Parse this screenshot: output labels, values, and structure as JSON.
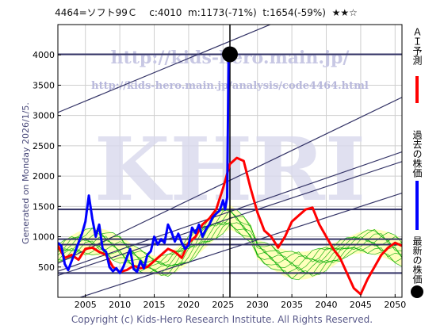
{
  "header": {
    "code_name": "4464=ソフト99Ｃ",
    "current": "c:4010",
    "min": "m:1173(-71%)",
    "target": "t:1654(-59%)",
    "rating": "★★☆"
  },
  "side_text": "Generated on Monday 2026/1/5.",
  "footer": "Copyright (c) Kids-Hero Research Institute. All Rights Reserved.",
  "watermark": {
    "url": "http://kids-hero.main.jp/",
    "path": "http://kids-hero.main.jp/analysis/code4464.html",
    "big": "KHRI"
  },
  "legend": [
    {
      "label": "ＡＩ予測",
      "color": "#ff0000"
    },
    {
      "label": "過去の株価",
      "color": "#0000ff"
    },
    {
      "label": "最新の株価",
      "color": "#000000"
    }
  ],
  "colors": {
    "forecast": "#ff0000",
    "history": "#0000ff",
    "band": "#00aa00",
    "band_fill": "#ffffb0",
    "line": "#333366"
  },
  "chart_data": {
    "type": "line",
    "xlim": [
      2001,
      2051
    ],
    "ylim": [
      0,
      4500
    ],
    "x_ticks": [
      2005,
      2010,
      2015,
      2020,
      2025,
      2030,
      2035,
      2040,
      2045,
      2050
    ],
    "y_ticks": [
      500,
      1000,
      1500,
      2000,
      2500,
      3000,
      3500,
      4000
    ],
    "grid": true,
    "latest": {
      "x": 2026.0,
      "y": 4010
    },
    "horizontal_lines": [
      4010,
      1450,
      960,
      870,
      400
    ],
    "trend_lines": [
      {
        "x": [
          2001,
          2051
        ],
        "y": [
          3050,
          5400
        ]
      },
      {
        "x": [
          2001,
          2051
        ],
        "y": [
          560,
          3300
        ]
      },
      {
        "x": [
          2001,
          2051
        ],
        "y": [
          430,
          2400
        ]
      },
      {
        "x": [
          2001,
          2051
        ],
        "y": [
          360,
          2240
        ]
      },
      {
        "x": [
          2001,
          2051
        ],
        "y": [
          -120,
          1720
        ]
      }
    ],
    "series": [
      {
        "name": "過去の株価",
        "x": [
          2001.0,
          2001.5,
          2002.0,
          2002.5,
          2003.0,
          2003.5,
          2004.0,
          2004.5,
          2005.0,
          2005.5,
          2006.0,
          2006.5,
          2007.0,
          2007.5,
          2008.0,
          2008.5,
          2009.0,
          2009.5,
          2010.0,
          2010.5,
          2011.0,
          2011.5,
          2012.0,
          2012.5,
          2013.0,
          2013.5,
          2014.0,
          2014.5,
          2015.0,
          2015.5,
          2016.0,
          2016.5,
          2017.0,
          2017.5,
          2018.0,
          2018.5,
          2019.0,
          2019.5,
          2020.0,
          2020.5,
          2021.0,
          2021.5,
          2022.0,
          2022.5,
          2023.0,
          2023.5,
          2024.0,
          2024.5,
          2025.0,
          2025.3,
          2025.6,
          2025.8,
          2026.0
        ],
        "y": [
          900,
          850,
          550,
          450,
          600,
          750,
          900,
          1050,
          1250,
          1680,
          1300,
          1000,
          1200,
          800,
          750,
          500,
          430,
          480,
          400,
          500,
          650,
          800,
          470,
          420,
          600,
          480,
          700,
          760,
          1000,
          870,
          960,
          900,
          1200,
          1080,
          920,
          1050,
          900,
          800,
          860,
          1150,
          1060,
          1200,
          1000,
          1120,
          1200,
          1320,
          1380,
          1430,
          1600,
          1450,
          1650,
          3950,
          4010
        ]
      },
      {
        "name": "ＡＩ予測",
        "x": [
          2001,
          2002,
          2003,
          2004,
          2005,
          2006,
          2007,
          2008,
          2009,
          2010,
          2011,
          2012,
          2013,
          2014,
          2015,
          2016,
          2017,
          2018,
          2019,
          2020,
          2021,
          2022,
          2023,
          2024,
          2025,
          2026,
          2027,
          2028,
          2029,
          2030,
          2031,
          2032,
          2033,
          2034,
          2035,
          2036,
          2037,
          2038,
          2039,
          2040,
          2041,
          2042,
          2043,
          2044,
          2045,
          2046,
          2047,
          2048,
          2049,
          2050,
          2051
        ],
        "y": [
          850,
          650,
          700,
          620,
          800,
          820,
          750,
          700,
          500,
          420,
          450,
          520,
          480,
          500,
          600,
          700,
          800,
          750,
          650,
          900,
          1000,
          1200,
          1300,
          1450,
          1800,
          2200,
          2300,
          2250,
          1800,
          1400,
          1100,
          1000,
          820,
          1000,
          1250,
          1350,
          1450,
          1480,
          1200,
          1000,
          800,
          650,
          400,
          150,
          50,
          300,
          500,
          700,
          820,
          900,
          850
        ]
      }
    ]
  }
}
